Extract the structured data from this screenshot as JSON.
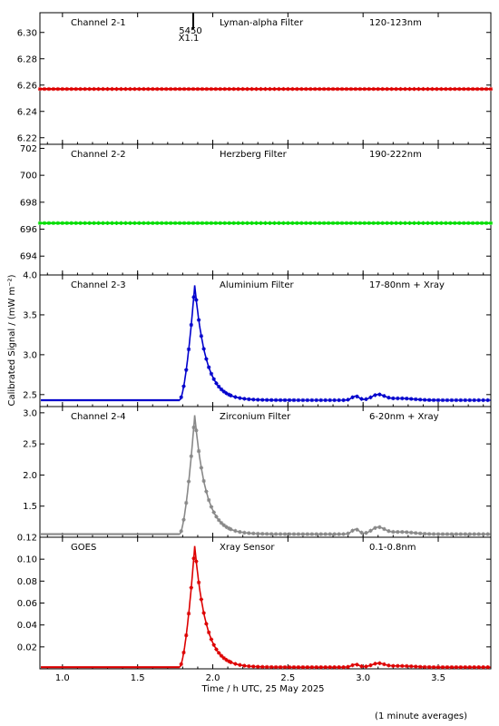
{
  "chart_data": {
    "type": "scatter",
    "xlabel": "Time / h UTC, 25 May 2025",
    "ylabel": "Calibrated Signal / (mW m⁻²)",
    "footnote": "(1 minute averages)",
    "xlim": [
      0.85,
      3.85
    ],
    "xticks": [
      "1.0",
      "1.5",
      "2.0",
      "2.5",
      "3.0",
      "3.5"
    ],
    "annotation": {
      "label_top": "5450",
      "label_bottom": "X1.1",
      "x": 1.87
    },
    "panels": [
      {
        "channel": "Channel 2-1",
        "filter": "Lyman-alpha Filter",
        "band": "120-123nm",
        "color": "#dd0000",
        "ylim": [
          6.215,
          6.315
        ],
        "yticks": [
          "6.22",
          "6.24",
          "6.26",
          "6.28",
          "6.30"
        ],
        "baseline": 6.257,
        "peak": 6.257,
        "bump": 0
      },
      {
        "channel": "Channel 2-2",
        "filter": "Herzberg Filter",
        "band": "190-222nm",
        "color": "#00dd00",
        "ylim": [
          692.6,
          702.3
        ],
        "yticks": [
          "694",
          "696",
          "698",
          "700",
          "702"
        ],
        "baseline": 696.45,
        "peak": 696.45,
        "bump": 0
      },
      {
        "channel": "Channel 2-3",
        "filter": "Aluminium Filter",
        "band": "17-80nm + Xray",
        "color": "#0000cc",
        "ylim": [
          2.35,
          4.0
        ],
        "yticks": [
          "2.5",
          "3.0",
          "3.5",
          "4.0"
        ],
        "baseline": 2.43,
        "peak": 3.87,
        "bump": 0.09
      },
      {
        "channel": "Channel 2-4",
        "filter": "Zirconium Filter",
        "band": "6-20nm + Xray",
        "color": "#888888",
        "ylim": [
          1.0,
          3.1
        ],
        "yticks": [
          "1.5",
          "2.0",
          "2.5",
          "3.0"
        ],
        "baseline": 1.05,
        "peak": 2.96,
        "bump": 0.14
      },
      {
        "channel": "GOES",
        "filter": "Xray Sensor",
        "band": "0.1-0.8nm",
        "color": "#dd0000",
        "ylim": [
          0.0,
          0.12
        ],
        "yticks": [
          "0.02",
          "0.04",
          "0.06",
          "0.08",
          "0.10",
          "0.12"
        ],
        "baseline": 0.0015,
        "peak": 0.112,
        "bump": 0.0045
      }
    ]
  }
}
